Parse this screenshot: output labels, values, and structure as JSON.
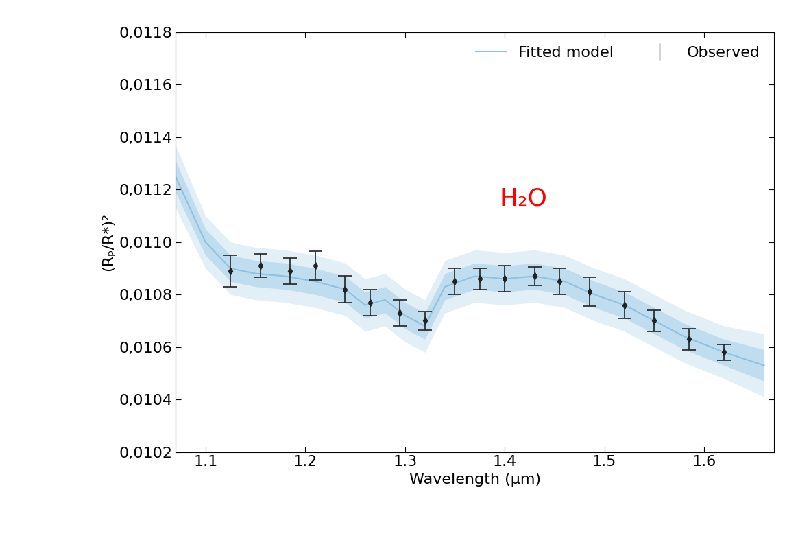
{
  "chart_data": {
    "type": "line",
    "xlabel": "Wavelength (μm)",
    "ylabel": "(Rₚ/R*)²",
    "xlim": [
      1.07,
      1.67
    ],
    "xticks": [
      1.1,
      1.2,
      1.3,
      1.4,
      1.5,
      1.6
    ],
    "ylim": [
      0.0102,
      0.0118
    ],
    "yticks": [
      {
        "value": 0.0102,
        "label": "0,0102"
      },
      {
        "value": 0.0104,
        "label": "0,0104"
      },
      {
        "value": 0.0106,
        "label": "0,0106"
      },
      {
        "value": 0.0108,
        "label": "0,0108"
      },
      {
        "value": 0.011,
        "label": "0,0110"
      },
      {
        "value": 0.0112,
        "label": "0,0112"
      },
      {
        "value": 0.0114,
        "label": "0,0114"
      },
      {
        "value": 0.0116,
        "label": "0,0116"
      },
      {
        "value": 0.0118,
        "label": "0,0118"
      }
    ],
    "legend": "upper right",
    "grid": false,
    "annotations": [
      {
        "text": "H₂O",
        "x": 1.395,
        "y": 0.01114,
        "color": "#ff0000"
      }
    ],
    "series": [
      {
        "name": "Fitted model",
        "type": "line",
        "color": "#8fc1e3",
        "x": [
          1.07,
          1.1,
          1.125,
          1.15,
          1.18,
          1.21,
          1.24,
          1.26,
          1.28,
          1.3,
          1.32,
          1.34,
          1.37,
          1.4,
          1.43,
          1.46,
          1.49,
          1.52,
          1.55,
          1.58,
          1.62,
          1.66
        ],
        "values": [
          0.01125,
          0.011,
          0.0109,
          0.01088,
          0.01087,
          0.01085,
          0.01082,
          0.01076,
          0.01078,
          0.01072,
          0.01068,
          0.01083,
          0.01087,
          0.01086,
          0.01087,
          0.01085,
          0.0108,
          0.01076,
          0.0107,
          0.01064,
          0.01058,
          0.01053
        ],
        "band_inner": [
          6e-05,
          5e-05,
          5e-05,
          5e-05,
          5e-05,
          5e-05,
          5e-05,
          5e-05,
          5e-05,
          5e-05,
          5e-05,
          5e-05,
          5e-05,
          5e-05,
          5e-05,
          5e-05,
          5e-05,
          5e-05,
          5e-05,
          5e-05,
          5e-05,
          6e-05
        ],
        "band_outer": [
          0.00012,
          0.0001,
          0.0001,
          0.0001,
          0.0001,
          0.0001,
          0.0001,
          0.0001,
          0.0001,
          0.0001,
          0.0001,
          0.0001,
          0.0001,
          0.0001,
          0.0001,
          0.0001,
          0.0001,
          0.0001,
          0.0001,
          0.0001,
          0.0001,
          0.00012
        ]
      },
      {
        "name": "Observed",
        "type": "scatter",
        "color": "#222222",
        "marker": "diamond",
        "x": [
          1.125,
          1.155,
          1.185,
          1.21,
          1.24,
          1.265,
          1.295,
          1.32,
          1.35,
          1.375,
          1.4,
          1.43,
          1.455,
          1.485,
          1.52,
          1.55,
          1.585,
          1.62
        ],
        "values": [
          0.01089,
          0.01091,
          0.01089,
          0.01091,
          0.01082,
          0.01077,
          0.01073,
          0.0107,
          0.01085,
          0.01086,
          0.01086,
          0.01087,
          0.01085,
          0.01081,
          0.01076,
          0.0107,
          0.01063,
          0.01058
        ],
        "error": [
          6e-05,
          4.5e-05,
          5e-05,
          5.5e-05,
          5e-05,
          5e-05,
          5e-05,
          3.5e-05,
          5e-05,
          4e-05,
          5e-05,
          3.5e-05,
          5e-05,
          5.5e-05,
          5e-05,
          4e-05,
          4e-05,
          3e-05
        ]
      }
    ]
  }
}
